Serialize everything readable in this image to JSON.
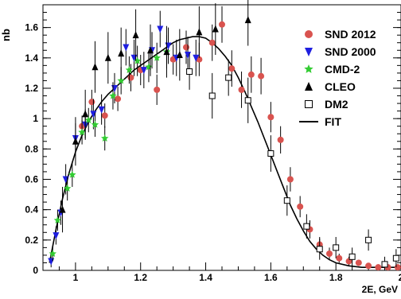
{
  "chart_data": {
    "type": "scatter",
    "title": "",
    "xlabel": "2E, GeV",
    "ylabel": "nb",
    "xlim": [
      0.9,
      2.0
    ],
    "ylim": [
      0,
      1.75
    ],
    "x_ticks": [
      1,
      1.2,
      1.4,
      1.6,
      1.8,
      2
    ],
    "x_tick_labels": [
      "1",
      "1.2",
      "1.4",
      "1.6",
      "1.8",
      "2"
    ],
    "y_ticks": [
      0,
      0.2,
      0.4,
      0.6,
      0.8,
      1,
      1.2,
      1.4,
      1.6
    ],
    "y_tick_labels": [
      "0",
      "0.2",
      "0.4",
      "0.6",
      "0.8",
      "1",
      "1.2",
      "1.4",
      "1.6"
    ],
    "legend_position": "top-right",
    "series": [
      {
        "name": "SND 2012",
        "marker": "circle",
        "color": "#d9534f",
        "points": [
          {
            "x": 1.02,
            "y": 0.95,
            "err": 0.07
          },
          {
            "x": 1.05,
            "y": 1.11,
            "err": 0.08
          },
          {
            "x": 1.09,
            "y": 1.02,
            "err": 0.08
          },
          {
            "x": 1.13,
            "y": 1.13,
            "err": 0.08
          },
          {
            "x": 1.17,
            "y": 1.27,
            "err": 0.09
          },
          {
            "x": 1.2,
            "y": 1.32,
            "err": 0.1
          },
          {
            "x": 1.25,
            "y": 1.19,
            "err": 0.1
          },
          {
            "x": 1.3,
            "y": 1.39,
            "err": 0.1
          },
          {
            "x": 1.34,
            "y": 1.47,
            "err": 0.11
          },
          {
            "x": 1.38,
            "y": 1.39,
            "err": 0.11
          },
          {
            "x": 1.42,
            "y": 1.5,
            "err": 0.12
          },
          {
            "x": 1.45,
            "y": 1.62,
            "err": 0.12
          },
          {
            "x": 1.48,
            "y": 1.33,
            "err": 0.12
          },
          {
            "x": 1.51,
            "y": 1.19,
            "err": 0.12
          },
          {
            "x": 1.54,
            "y": 1.29,
            "err": 0.12
          },
          {
            "x": 1.57,
            "y": 1.28,
            "err": 0.12
          },
          {
            "x": 1.6,
            "y": 1.01,
            "err": 0.1
          },
          {
            "x": 1.63,
            "y": 0.86,
            "err": 0.09
          },
          {
            "x": 1.66,
            "y": 0.6,
            "err": 0.08
          },
          {
            "x": 1.69,
            "y": 0.42,
            "err": 0.07
          },
          {
            "x": 1.72,
            "y": 0.27,
            "err": 0.06
          },
          {
            "x": 1.75,
            "y": 0.17,
            "err": 0.05
          },
          {
            "x": 1.78,
            "y": 0.11,
            "err": 0.04
          },
          {
            "x": 1.81,
            "y": 0.08,
            "err": 0.03
          },
          {
            "x": 1.84,
            "y": 0.06,
            "err": 0.03
          },
          {
            "x": 1.87,
            "y": 0.05,
            "err": 0.02
          },
          {
            "x": 1.9,
            "y": 0.03,
            "err": 0.02
          },
          {
            "x": 1.93,
            "y": 0.02,
            "err": 0.02
          },
          {
            "x": 1.96,
            "y": 0.02,
            "err": 0.02
          },
          {
            "x": 1.99,
            "y": 0.02,
            "err": 0.02
          }
        ]
      },
      {
        "name": "SND 2000",
        "marker": "triangle-down",
        "color": "#1f1fe0",
        "points": [
          {
            "x": 0.925,
            "y": 0.06,
            "err": 0.04
          },
          {
            "x": 0.94,
            "y": 0.23,
            "err": 0.06
          },
          {
            "x": 0.955,
            "y": 0.38,
            "err": 0.08
          },
          {
            "x": 0.97,
            "y": 0.6,
            "err": 0.1
          },
          {
            "x": 1.0,
            "y": 0.87,
            "err": 0.1
          },
          {
            "x": 1.03,
            "y": 0.96,
            "err": 0.1
          },
          {
            "x": 1.055,
            "y": 1.03,
            "err": 0.1
          },
          {
            "x": 1.08,
            "y": 1.06,
            "err": 0.1
          },
          {
            "x": 1.12,
            "y": 1.2,
            "err": 0.1
          },
          {
            "x": 1.155,
            "y": 1.47,
            "err": 0.12
          },
          {
            "x": 1.18,
            "y": 1.4,
            "err": 0.12
          },
          {
            "x": 1.21,
            "y": 1.32,
            "err": 0.12
          },
          {
            "x": 1.235,
            "y": 1.45,
            "err": 0.12
          },
          {
            "x": 1.26,
            "y": 1.59,
            "err": 0.12
          },
          {
            "x": 1.285,
            "y": 1.48,
            "err": 0.12
          },
          {
            "x": 1.31,
            "y": 1.4,
            "err": 0.12
          },
          {
            "x": 1.345,
            "y": 1.42,
            "err": 0.12
          },
          {
            "x": 1.37,
            "y": 1.4,
            "err": 0.12
          }
        ]
      },
      {
        "name": "CMD-2",
        "marker": "star",
        "color": "#33cc33",
        "points": [
          {
            "x": 0.93,
            "y": 0.11,
            "err": 0.05
          },
          {
            "x": 0.945,
            "y": 0.33,
            "err": 0.07
          },
          {
            "x": 0.975,
            "y": 0.54,
            "err": 0.08
          },
          {
            "x": 0.99,
            "y": 0.63,
            "err": 0.08
          },
          {
            "x": 1.02,
            "y": 0.91,
            "err": 0.08
          },
          {
            "x": 1.04,
            "y": 0.99,
            "err": 0.08
          },
          {
            "x": 1.06,
            "y": 0.96,
            "err": 0.08
          },
          {
            "x": 1.09,
            "y": 0.87,
            "err": 0.08
          },
          {
            "x": 1.115,
            "y": 1.15,
            "err": 0.09
          },
          {
            "x": 1.14,
            "y": 1.25,
            "err": 0.09
          },
          {
            "x": 1.165,
            "y": 1.32,
            "err": 0.09
          },
          {
            "x": 1.19,
            "y": 1.38,
            "err": 0.1
          },
          {
            "x": 1.225,
            "y": 1.34,
            "err": 0.1
          },
          {
            "x": 1.25,
            "y": 1.4,
            "err": 0.1
          },
          {
            "x": 1.28,
            "y": 1.44,
            "err": 0.11
          }
        ]
      },
      {
        "name": "CLEO",
        "marker": "triangle-up",
        "color": "#000000",
        "points": [
          {
            "x": 0.96,
            "y": 0.4,
            "err": 0.15
          },
          {
            "x": 1.0,
            "y": 0.85,
            "err": 0.16
          },
          {
            "x": 1.03,
            "y": 1.03,
            "err": 0.16
          },
          {
            "x": 1.06,
            "y": 1.34,
            "err": 0.17
          },
          {
            "x": 1.1,
            "y": 1.4,
            "err": 0.17
          },
          {
            "x": 1.14,
            "y": 1.43,
            "err": 0.17
          },
          {
            "x": 1.185,
            "y": 1.55,
            "err": 0.17
          },
          {
            "x": 1.23,
            "y": 1.45,
            "err": 0.17
          },
          {
            "x": 1.28,
            "y": 1.44,
            "err": 0.17
          },
          {
            "x": 1.32,
            "y": 1.42,
            "err": 0.17
          },
          {
            "x": 1.38,
            "y": 1.57,
            "err": 0.17
          },
          {
            "x": 1.43,
            "y": 1.59,
            "err": 0.17
          },
          {
            "x": 1.53,
            "y": 1.65,
            "err": 0.17
          }
        ]
      },
      {
        "name": "DM2",
        "marker": "open-square",
        "color": "#000000",
        "points": [
          {
            "x": 1.35,
            "y": 1.31,
            "err": 0.12
          },
          {
            "x": 1.42,
            "y": 1.15,
            "err": 0.15
          },
          {
            "x": 1.47,
            "y": 1.27,
            "err": 0.12
          },
          {
            "x": 1.53,
            "y": 1.12,
            "err": 0.15
          },
          {
            "x": 1.6,
            "y": 0.77,
            "err": 0.12
          },
          {
            "x": 1.65,
            "y": 0.46,
            "err": 0.1
          },
          {
            "x": 1.71,
            "y": 0.29,
            "err": 0.08
          },
          {
            "x": 1.75,
            "y": 0.14,
            "err": 0.07
          },
          {
            "x": 1.8,
            "y": 0.15,
            "err": 0.07
          },
          {
            "x": 1.85,
            "y": 0.09,
            "err": 0.06
          },
          {
            "x": 1.9,
            "y": 0.2,
            "err": 0.07
          },
          {
            "x": 1.95,
            "y": 0.04,
            "err": 0.05
          },
          {
            "x": 1.985,
            "y": 0.08,
            "err": 0.06
          }
        ]
      }
    ],
    "fit": {
      "name": "FIT",
      "color": "#000000",
      "x": [
        0.92,
        0.94,
        0.96,
        0.98,
        1.0,
        1.02,
        1.04,
        1.06,
        1.08,
        1.1,
        1.12,
        1.14,
        1.16,
        1.18,
        1.2,
        1.22,
        1.24,
        1.26,
        1.28,
        1.3,
        1.32,
        1.34,
        1.36,
        1.38,
        1.4,
        1.42,
        1.44,
        1.46,
        1.48,
        1.5,
        1.52,
        1.54,
        1.56,
        1.58,
        1.6,
        1.62,
        1.64,
        1.66,
        1.68,
        1.7,
        1.72,
        1.74,
        1.76,
        1.78,
        1.8,
        1.84,
        1.88,
        1.92,
        1.96,
        2.0
      ],
      "y": [
        0.05,
        0.27,
        0.47,
        0.64,
        0.78,
        0.89,
        0.98,
        1.05,
        1.11,
        1.16,
        1.2,
        1.24,
        1.28,
        1.32,
        1.35,
        1.38,
        1.41,
        1.44,
        1.47,
        1.5,
        1.52,
        1.53,
        1.54,
        1.54,
        1.53,
        1.5,
        1.46,
        1.41,
        1.35,
        1.27,
        1.18,
        1.08,
        0.98,
        0.87,
        0.76,
        0.65,
        0.54,
        0.43,
        0.34,
        0.26,
        0.19,
        0.14,
        0.1,
        0.07,
        0.05,
        0.03,
        0.02,
        0.02,
        0.02,
        0.02
      ]
    }
  }
}
